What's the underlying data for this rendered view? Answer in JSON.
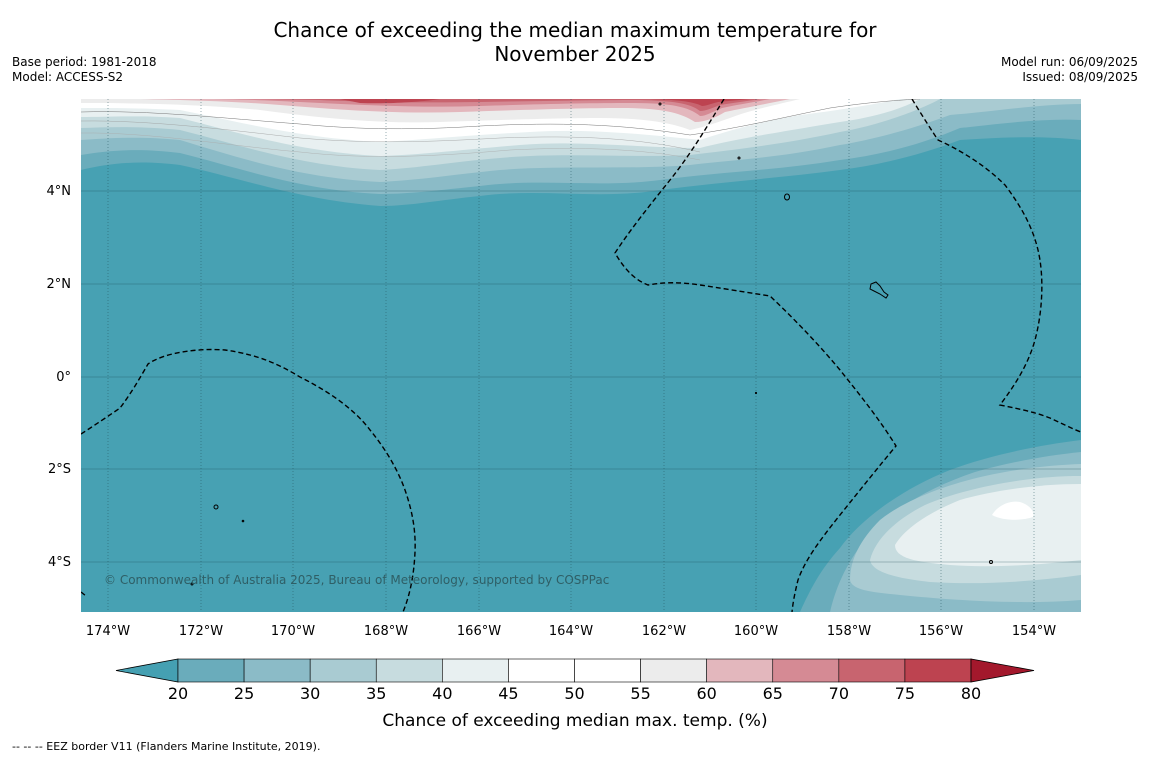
{
  "title_line1": "Chance of exceeding the median maximum temperature for",
  "title_line2": "November 2025",
  "base_period": "Base period: 1981-2018",
  "model": "Model: ACCESS-S2",
  "model_run": "Model run: 06/09/2025",
  "issued": "Issued: 08/09/2025",
  "copyright": "© Commonwealth of Australia 2025, Bureau of Meteorology, supported by COSPPac",
  "footer": "--  --  -- EEZ border V11 (Flanders Marine Institute, 2019).",
  "colorbar_title": "Chance of exceeding median max. temp. (%)",
  "lon_labels": [
    "174°W",
    "172°W",
    "170°W",
    "168°W",
    "166°W",
    "164°W",
    "162°W",
    "160°W",
    "158°W",
    "156°W",
    "154°W"
  ],
  "lat_labels": [
    "4°N",
    "2°N",
    "0°",
    "2°S",
    "4°S"
  ],
  "colorbar_ticks": [
    "20",
    "25",
    "30",
    "35",
    "40",
    "45",
    "50",
    "55",
    "60",
    "65",
    "70",
    "75",
    "80"
  ],
  "colorbar_colors": [
    "#45a0b2",
    "#6aacbb",
    "#8bbbc7",
    "#a9cbd2",
    "#c7dcdf",
    "#e8f0f1",
    "#ffffff",
    "#ffffff",
    "#ececec",
    "#e3b7bd",
    "#d58a94",
    "#c8646f",
    "#bd4350",
    "#a3182c"
  ],
  "ocean_color": "#47a1b3"
}
